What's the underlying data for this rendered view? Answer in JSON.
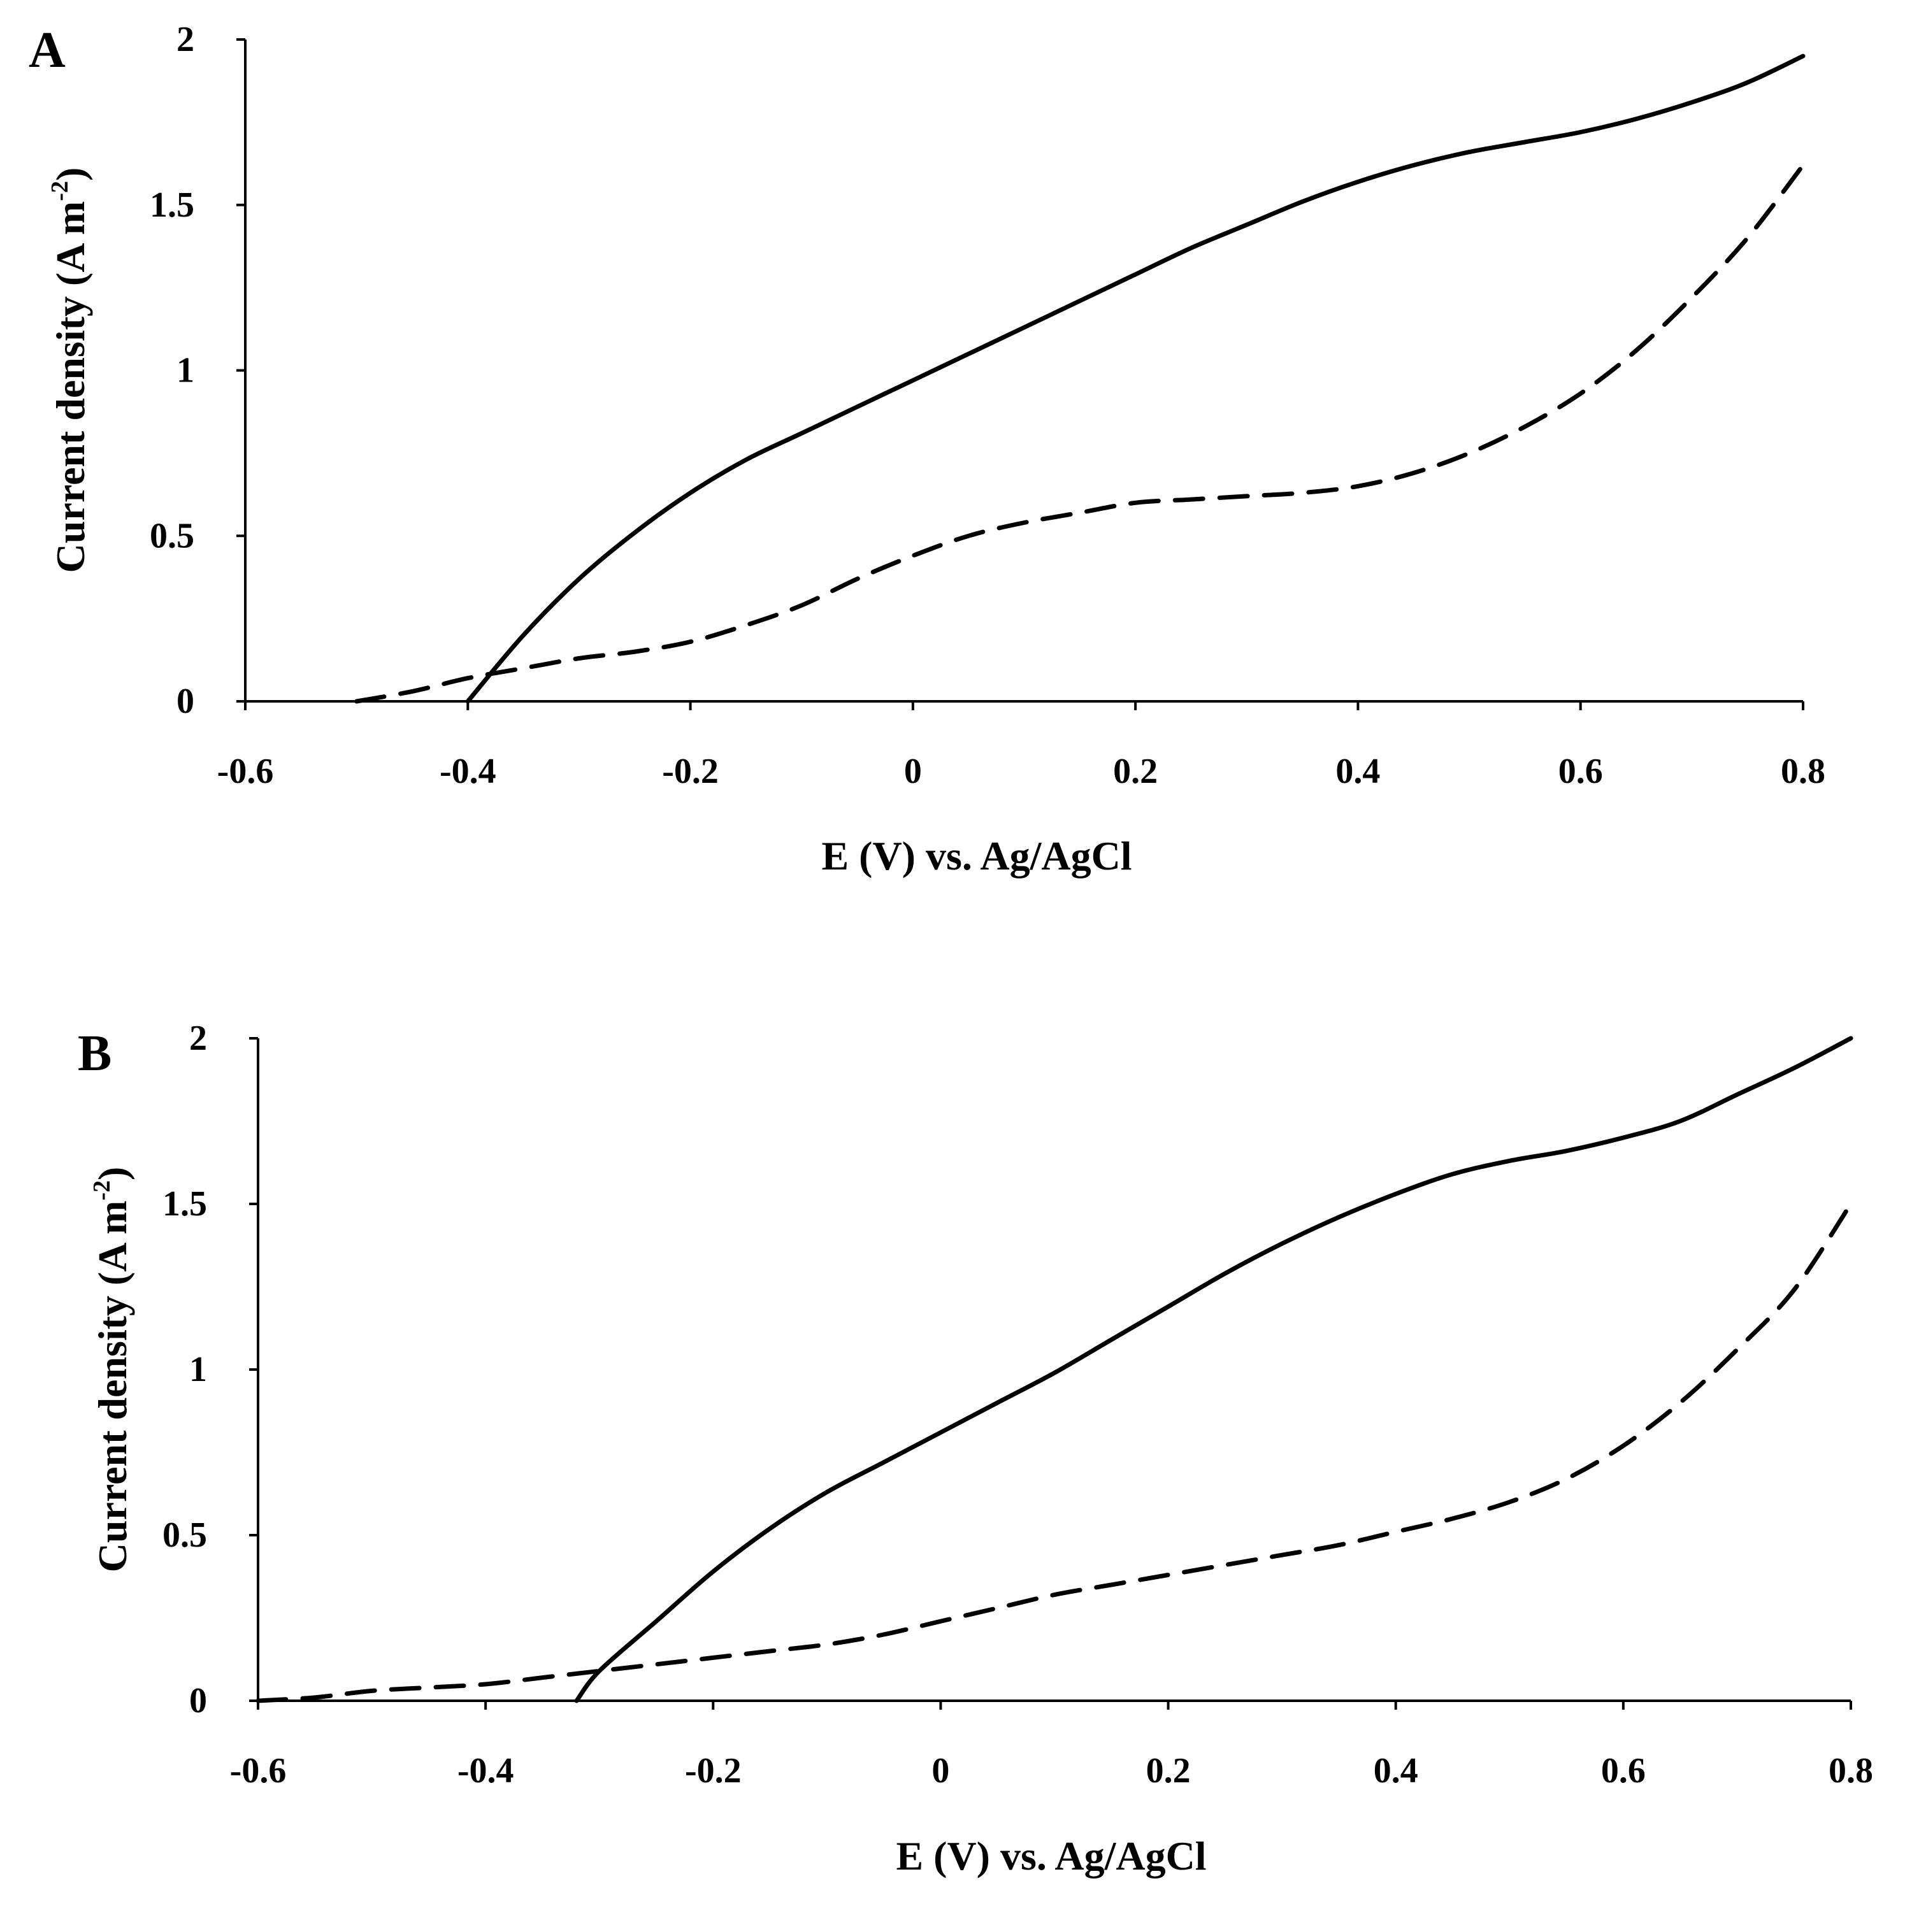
{
  "chart_data": [
    {
      "panel_label": "A",
      "type": "line",
      "xlabel": "E (V) vs. Ag/AgCl",
      "ylabel_main": "Current density (A m",
      "ylabel_sup": "-2",
      "ylabel_close": ")",
      "xlim": [
        -0.6,
        0.8
      ],
      "ylim": [
        0,
        2
      ],
      "x_ticks": [
        -0.6,
        -0.4,
        -0.2,
        0,
        0.2,
        0.4,
        0.6,
        0.8
      ],
      "x_tick_labels": [
        "-0.6",
        "-0.4",
        "-0.2",
        "0",
        "0.2",
        "0.4",
        "0.6",
        "0.8"
      ],
      "y_ticks": [
        0,
        0.5,
        1,
        1.5,
        2
      ],
      "y_tick_labels": [
        "0",
        "0.5",
        "1",
        "1.5",
        "2"
      ],
      "series": [
        {
          "name": "solid",
          "style": "solid",
          "x": [
            -0.4,
            -0.35,
            -0.3,
            -0.25,
            -0.2,
            -0.15,
            -0.1,
            -0.05,
            0,
            0.05,
            0.1,
            0.15,
            0.2,
            0.25,
            0.3,
            0.35,
            0.4,
            0.45,
            0.5,
            0.55,
            0.6,
            0.65,
            0.7,
            0.75,
            0.8
          ],
          "y": [
            0,
            0.2,
            0.37,
            0.51,
            0.63,
            0.73,
            0.81,
            0.89,
            0.97,
            1.05,
            1.13,
            1.21,
            1.29,
            1.37,
            1.44,
            1.51,
            1.57,
            1.62,
            1.66,
            1.69,
            1.72,
            1.76,
            1.81,
            1.87,
            1.95
          ]
        },
        {
          "name": "dashed",
          "style": "dashed",
          "x": [
            -0.5,
            -0.45,
            -0.4,
            -0.35,
            -0.3,
            -0.25,
            -0.2,
            -0.15,
            -0.1,
            -0.05,
            0,
            0.05,
            0.1,
            0.15,
            0.2,
            0.25,
            0.3,
            0.35,
            0.4,
            0.45,
            0.5,
            0.55,
            0.6,
            0.65,
            0.7,
            0.75,
            0.8
          ],
          "y": [
            0,
            0.03,
            0.07,
            0.1,
            0.13,
            0.15,
            0.18,
            0.23,
            0.29,
            0.37,
            0.44,
            0.5,
            0.54,
            0.57,
            0.6,
            0.61,
            0.62,
            0.63,
            0.65,
            0.69,
            0.75,
            0.83,
            0.93,
            1.06,
            1.22,
            1.4,
            1.62
          ]
        }
      ]
    },
    {
      "panel_label": "B",
      "type": "line",
      "xlabel": "E (V) vs. Ag/AgCl",
      "ylabel_main": "Current density (A m",
      "ylabel_sup": "-2",
      "ylabel_close": ")",
      "xlim": [
        -0.6,
        0.8
      ],
      "ylim": [
        0,
        2
      ],
      "x_ticks": [
        -0.6,
        -0.4,
        -0.2,
        0,
        0.2,
        0.4,
        0.6,
        0.8
      ],
      "x_tick_labels": [
        "-0.6",
        "-0.4",
        "-0.2",
        "0",
        "0.2",
        "0.4",
        "0.6",
        "0.8"
      ],
      "y_ticks": [
        0,
        0.5,
        1,
        1.5,
        2
      ],
      "y_tick_labels": [
        "0",
        "0.5",
        "1",
        "1.5",
        "2"
      ],
      "series": [
        {
          "name": "solid",
          "style": "solid",
          "x": [
            -0.32,
            -0.3,
            -0.25,
            -0.2,
            -0.15,
            -0.1,
            -0.05,
            0,
            0.05,
            0.1,
            0.15,
            0.2,
            0.25,
            0.3,
            0.35,
            0.4,
            0.45,
            0.5,
            0.55,
            0.6,
            0.65,
            0.7,
            0.75,
            0.8
          ],
          "y": [
            0,
            0.09,
            0.24,
            0.39,
            0.52,
            0.63,
            0.72,
            0.81,
            0.9,
            0.99,
            1.09,
            1.19,
            1.29,
            1.38,
            1.46,
            1.53,
            1.59,
            1.63,
            1.66,
            1.7,
            1.75,
            1.83,
            1.91,
            2.0
          ]
        },
        {
          "name": "dashed",
          "style": "dashed",
          "x": [
            -0.6,
            -0.55,
            -0.5,
            -0.45,
            -0.4,
            -0.35,
            -0.3,
            -0.25,
            -0.2,
            -0.15,
            -0.1,
            -0.05,
            0,
            0.05,
            0.1,
            0.15,
            0.2,
            0.25,
            0.3,
            0.35,
            0.4,
            0.45,
            0.5,
            0.55,
            0.6,
            0.65,
            0.7,
            0.75,
            0.8
          ],
          "y": [
            0,
            0.01,
            0.03,
            0.04,
            0.05,
            0.07,
            0.09,
            0.11,
            0.13,
            0.15,
            0.17,
            0.2,
            0.24,
            0.28,
            0.32,
            0.35,
            0.38,
            0.41,
            0.44,
            0.47,
            0.51,
            0.55,
            0.6,
            0.67,
            0.77,
            0.9,
            1.06,
            1.24,
            1.5
          ]
        }
      ]
    }
  ]
}
